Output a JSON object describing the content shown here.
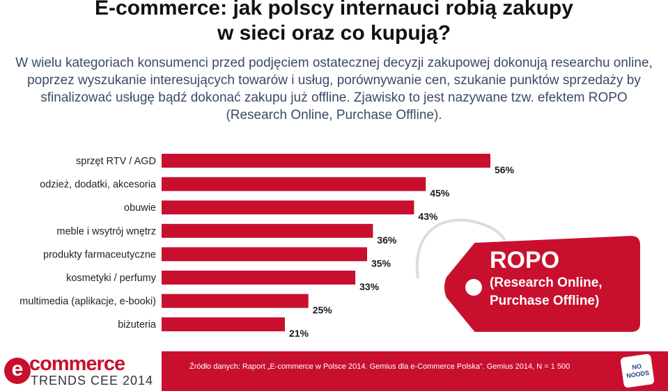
{
  "title_line1": "E-commerce: jak polscy internauci robią zakupy",
  "title_line2": "w sieci oraz co kupują?",
  "intro": "W wielu kategoriach konsumenci przed podjęciem ostatecznej decyzji zakupowej dokonują researchu online, poprzez wyszukanie interesujących towarów i usług, porównywanie cen, szukanie punktów sprzedaży by sfinalizować usługę bądź dokonać zakupu już offline. Zjawisko to jest nazywane tzw. efektem ROPO (Research Online, Purchase Offline).",
  "chart_data": {
    "type": "bar",
    "orientation": "horizontal",
    "categories": [
      "sprzęt RTV / AGD",
      "odzież, dodatki, akcesoria",
      "obuwie",
      "meble i wsytrój wnętrz",
      "produkty farmaceutyczne",
      "kosmetyki / perfumy",
      "multimedia (aplikacje, e-booki)",
      "biżuteria"
    ],
    "values": [
      56,
      45,
      43,
      36,
      35,
      33,
      25,
      21
    ],
    "value_labels": [
      "56%",
      "45%",
      "43%",
      "36%",
      "35%",
      "33%",
      "25%",
      "21%"
    ],
    "bar_color": "#c8102e",
    "xlim": [
      0,
      56
    ]
  },
  "tag": {
    "title": "ROPO",
    "subtitle": "(Research Online, Purchase Offline)",
    "color": "#c8102e"
  },
  "footer": {
    "logo_e": "e",
    "logo_main": "commerce",
    "logo_sub": "TRENDS CEE 2014",
    "source": "Źródło danych: Raport „E-commerce w Polsce 2014. Gemius dla e-Commerce Polska”. Gemius 2014, N = 1 500",
    "badge": "NO NOODS"
  }
}
